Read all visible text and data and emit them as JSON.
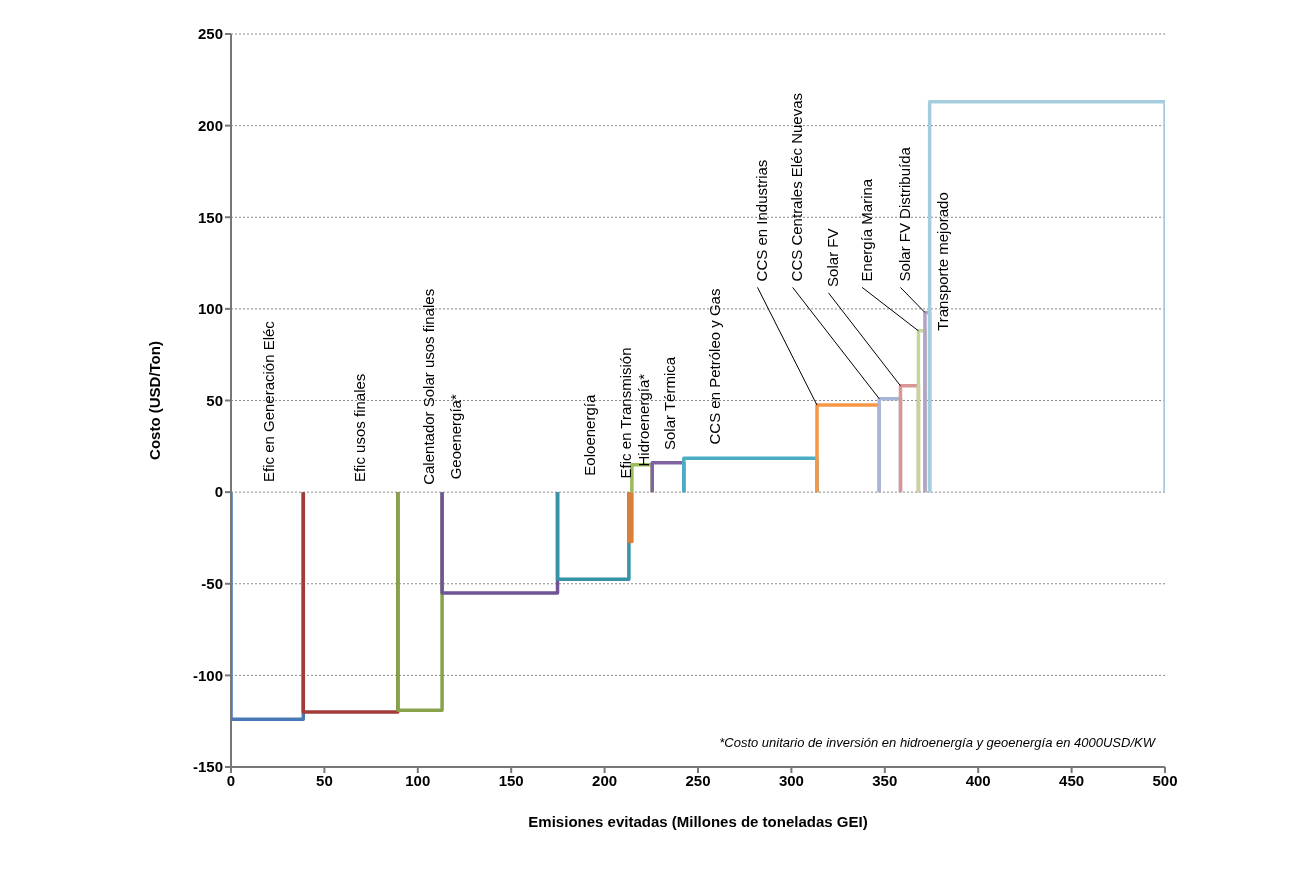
{
  "chart_data": {
    "type": "line",
    "xlabel": "Emisiones evitadas (Millones de toneladas GEI)",
    "ylabel": "Costo (USD/Ton)",
    "xlim": [
      0,
      500
    ],
    "xticks": [
      0,
      50,
      100,
      150,
      200,
      250,
      300,
      350,
      400,
      450,
      500
    ],
    "ylim": [
      -150,
      250
    ],
    "yticks": [
      -150,
      -100,
      -50,
      0,
      50,
      100,
      150,
      200,
      250
    ],
    "grid": "y",
    "legend": false,
    "line_style": "solid",
    "annotations": [
      "*Costo unitario de inversión en hidroenergía y geoenergía  en 4000USD/KW"
    ],
    "series": [
      {
        "name": "Efic en Generación Eléc",
        "color": "#4a7ab5",
        "x": [
          0,
          0,
          38.7,
          38.7
        ],
        "values": [
          0,
          -124,
          -124,
          0
        ]
      },
      {
        "name": "Efic usos finales",
        "color": "#a33b3a",
        "x": [
          38.7,
          38.7,
          89.3,
          89.3
        ],
        "values": [
          0,
          -120,
          -120,
          0
        ]
      },
      {
        "name": "Calentador Solar usos finales",
        "color": "#86a24a",
        "x": [
          89.3,
          89.3,
          113,
          113
        ],
        "values": [
          0,
          -119,
          -119,
          0
        ]
      },
      {
        "name": "Geoenergía*",
        "color": "#6f5596",
        "x": [
          113,
          113,
          174.8,
          174.8
        ],
        "values": [
          0,
          -55,
          -55,
          0
        ]
      },
      {
        "name": "Eoloenergía",
        "color": "#3592a7",
        "x": [
          174.8,
          174.8,
          213,
          213
        ],
        "values": [
          0,
          -47.5,
          -47.5,
          0
        ]
      },
      {
        "name": "Efic en Transmisión",
        "color": "#d9803a",
        "x": [
          213,
          213,
          214.6,
          214.6
        ],
        "values": [
          0,
          -27,
          -27,
          0
        ]
      },
      {
        "name": "Hidroenergía*",
        "color": "#9bbb59",
        "x": [
          214.6,
          214.6,
          225.5,
          225.5
        ],
        "values": [
          0,
          15,
          15,
          0
        ]
      },
      {
        "name": "Solar Térmica",
        "color": "#8064a2",
        "x": [
          225.5,
          225.5,
          242.4,
          242.4
        ],
        "values": [
          0,
          16,
          16,
          0
        ]
      },
      {
        "name": "CCS en Petróleo y Gas",
        "color": "#4bacc6",
        "x": [
          242.4,
          242.4,
          313.7,
          313.7
        ],
        "values": [
          0,
          18.5,
          18.5,
          0
        ]
      },
      {
        "name": "CCS en Industrias",
        "color": "#f79646",
        "x": [
          313.7,
          313.7,
          347,
          347
        ],
        "values": [
          0,
          47.5,
          47.5,
          0
        ]
      },
      {
        "name": "CCS Centrales Eléc Nuevas",
        "color": "#a5b6d6",
        "x": [
          347,
          347,
          358.4,
          358.4
        ],
        "values": [
          0,
          51,
          51,
          0
        ]
      },
      {
        "name": "Solar FV",
        "color": "#d99694",
        "x": [
          358.4,
          358.4,
          368,
          368
        ],
        "values": [
          0,
          58,
          58,
          0
        ]
      },
      {
        "name": "Energía Marina",
        "color": "#c3d69b",
        "x": [
          368,
          368,
          371.5,
          371.5
        ],
        "values": [
          0,
          88,
          88,
          0
        ]
      },
      {
        "name": "Solar FV Distribuída",
        "color": "#b3a2c7",
        "x": [
          371.5,
          371.5,
          374,
          374
        ],
        "values": [
          0,
          98,
          98,
          0
        ]
      },
      {
        "name": "Transporte mejorado",
        "color": "#a6cdde",
        "x": [
          374,
          374,
          500,
          500
        ],
        "values": [
          0,
          213,
          213,
          0
        ]
      }
    ]
  }
}
